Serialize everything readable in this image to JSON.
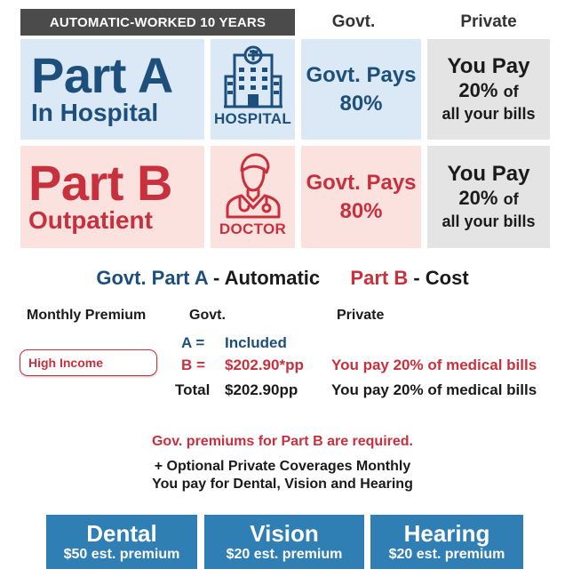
{
  "header": {
    "banner": "AUTOMATIC-WORKED 10 YEARS",
    "col_govt": "Govt.",
    "col_private": "Private"
  },
  "part_a": {
    "title": "Part A",
    "subtitle": "In Hospital",
    "icon": "hospital-icon",
    "icon_label": "HOSPITAL",
    "govt_line1": "Govt. Pays",
    "govt_line2": "80%",
    "private_line1": "You Pay",
    "private_pct": "20%",
    "private_of": "of",
    "private_line3": "all your bills"
  },
  "part_b": {
    "title": "Part B",
    "subtitle": "Outpatient",
    "icon": "doctor-icon",
    "icon_label": "DOCTOR",
    "govt_line1": "Govt. Pays",
    "govt_line2": "80%",
    "private_line1": "You Pay",
    "private_pct": "20%",
    "private_of": "of",
    "private_line3": "all your bills"
  },
  "summary": {
    "heading_a": "Govt. Part A",
    "heading_a_rest": " - Automatic",
    "heading_b": "Part B",
    "heading_b_rest": " - Cost",
    "col_monthly": "Monthly Premium",
    "col_govt": "Govt.",
    "col_private": "Private",
    "badge": "High Income",
    "rows": [
      {
        "label": "A =",
        "govt": "Included",
        "private": ""
      },
      {
        "label": "B =",
        "govt": "$202.90*pp",
        "private": "You pay 20% of medical bills"
      },
      {
        "label": "Total",
        "govt": "$202.90pp",
        "private": "You pay 20% of medical bills"
      }
    ]
  },
  "notes": {
    "required": "Gov. premiums for Part B are required.",
    "optional": "+ Optional Private Coverages Monthly",
    "pay_for": "You pay for Dental, Vision and Hearing"
  },
  "coverages": [
    {
      "name": "Dental",
      "premium": "$50 est. premium"
    },
    {
      "name": "Vision",
      "premium": "$20 est. premium"
    },
    {
      "name": "Hearing",
      "premium": "$20 est. premium"
    }
  ],
  "colors": {
    "navy": "#1d4f7c",
    "red": "#c8303d",
    "tile_blue": "#2f7fb5",
    "banner_grey": "#4b4b4b"
  }
}
